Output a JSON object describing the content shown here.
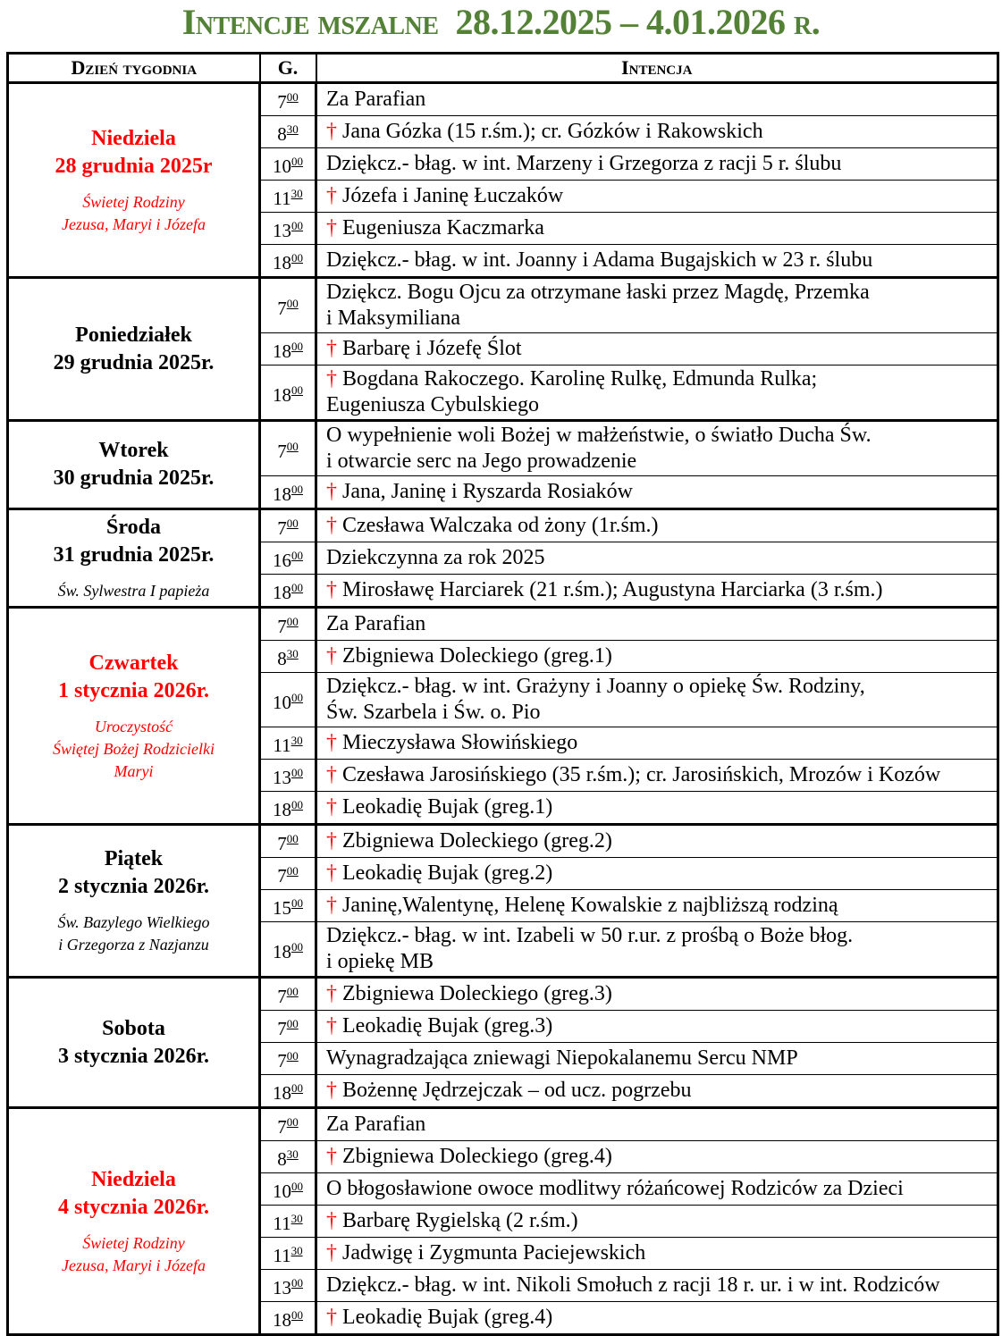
{
  "title": {
    "prefix": "Intencje mszalne",
    "dates": "28.12.2025 – 4.01.2026",
    "suffix": "r."
  },
  "headers": {
    "day": "Dzień tygodnia",
    "hour": "G.",
    "intention": "Intencja"
  },
  "colors": {
    "title": "#538135",
    "feast": "#ff0000",
    "cross": "#ff0000"
  },
  "cross_symbol": "†",
  "days": [
    {
      "name": "Niedziela",
      "date": "28 grudnia 2025r",
      "feast": "Świetej Rodziny\nJezusa, Maryi i Józefa",
      "red": true,
      "rows": [
        {
          "h": "7",
          "m": "00",
          "cross": false,
          "text": "Za Parafian"
        },
        {
          "h": "8",
          "m": "30",
          "cross": true,
          "text": "Jana Gózka (15 r.śm.); cr. Gózków i Rakowskich"
        },
        {
          "h": "10",
          "m": "00",
          "cross": false,
          "text": "Dziękcz.- błag. w int. Marzeny i Grzegorza z racji 5 r. ślubu"
        },
        {
          "h": "11",
          "m": "30",
          "cross": true,
          "text": "Józefa i Janinę Łuczaków"
        },
        {
          "h": "13",
          "m": "00",
          "cross": true,
          "text": "Eugeniusza Kaczmarka"
        },
        {
          "h": "18",
          "m": "00",
          "cross": false,
          "text": "Dziękcz.- błag. w int. Joanny i Adama Bugajskich w 23 r. ślubu"
        }
      ]
    },
    {
      "name": "Poniedziałek",
      "date": "29 grudnia 2025r.",
      "feast": "",
      "red": false,
      "rows": [
        {
          "h": "7",
          "m": "00",
          "cross": false,
          "text": "Dziękcz. Bogu Ojcu za otrzymane łaski przez Magdę, Przemka\ni Maksymiliana"
        },
        {
          "h": "18",
          "m": "00",
          "cross": true,
          "text": "Barbarę i Józefę Ślot"
        },
        {
          "h": "18",
          "m": "00",
          "cross": true,
          "text": "Bogdana Rakoczego. Karolinę Rulkę, Edmunda Rulka;\nEugeniusza Cybulskiego"
        }
      ]
    },
    {
      "name": "Wtorek",
      "date": "30 grudnia 2025r.",
      "feast": "",
      "red": false,
      "rows": [
        {
          "h": "7",
          "m": "00",
          "cross": false,
          "text": "O wypełnienie woli Bożej w małżeństwie, o światło Ducha Św.\ni otwarcie serc na Jego prowadzenie"
        },
        {
          "h": "18",
          "m": "00",
          "cross": true,
          "text": "Jana, Janinę i Ryszarda Rosiaków"
        }
      ]
    },
    {
      "name": "Środa",
      "date": "31 grudnia 2025r.",
      "feast": "Św. Sylwestra I papieża",
      "red": false,
      "rows": [
        {
          "h": "7",
          "m": "00",
          "cross": true,
          "text": "Czesława Walczaka od żony (1r.śm.)"
        },
        {
          "h": "16",
          "m": "00",
          "cross": false,
          "text": "Dziekczynna za rok 2025"
        },
        {
          "h": "18",
          "m": "00",
          "cross": true,
          "text": "Mirosławę Harciarek (21 r.śm.); Augustyna Harciarka (3 r.śm.)"
        }
      ]
    },
    {
      "name": "Czwartek",
      "date": "1 stycznia 2026r.",
      "feast": "Uroczystość\nŚwiętej Bożej Rodzicielki\nMaryi",
      "red": true,
      "rows": [
        {
          "h": "7",
          "m": "00",
          "cross": false,
          "text": "Za Parafian"
        },
        {
          "h": "8",
          "m": "30",
          "cross": true,
          "text": "Zbigniewa Doleckiego (greg.1)"
        },
        {
          "h": "10",
          "m": "00",
          "cross": false,
          "text": "Dziękcz.- błag. w int. Grażyny i Joanny o opiekę Św. Rodziny,\nŚw. Szarbela i Św. o. Pio"
        },
        {
          "h": "11",
          "m": "30",
          "cross": true,
          "text": "Mieczysława Słowińskiego"
        },
        {
          "h": "13",
          "m": "00",
          "cross": true,
          "text": "Czesława Jarosińskiego (35 r.śm.); cr. Jarosińskich, Mrozów i Kozów"
        },
        {
          "h": "18",
          "m": "00",
          "cross": true,
          "text": "Leokadię Bujak (greg.1)"
        }
      ]
    },
    {
      "name": "Piątek",
      "date": "2 stycznia 2026r.",
      "feast": "Św. Bazylego Wielkiego\ni Grzegorza z Nazjanzu",
      "red": false,
      "rows": [
        {
          "h": "7",
          "m": "00",
          "cross": true,
          "text": "Zbigniewa Doleckiego (greg.2)"
        },
        {
          "h": "7",
          "m": "00",
          "cross": true,
          "text": "Leokadię Bujak (greg.2)"
        },
        {
          "h": "15",
          "m": "00",
          "cross": true,
          "text": "Janinę,Walentynę, Helenę Kowalskie z najbliższą rodziną"
        },
        {
          "h": "18",
          "m": "00",
          "cross": false,
          "text": "Dziękcz.- błag. w int. Izabeli w 50 r.ur. z prośbą o Boże błog.\ni opiekę MB"
        }
      ]
    },
    {
      "name": "Sobota",
      "date": "3 stycznia 2026r.",
      "feast": "",
      "red": false,
      "rows": [
        {
          "h": "7",
          "m": "00",
          "cross": true,
          "text": "Zbigniewa Doleckiego (greg.3)"
        },
        {
          "h": "7",
          "m": "00",
          "cross": true,
          "text": "Leokadię Bujak (greg.3)"
        },
        {
          "h": "7",
          "m": "00",
          "cross": false,
          "text": "Wynagradzająca zniewagi Niepokalanemu Sercu NMP"
        },
        {
          "h": "18",
          "m": "00",
          "cross": true,
          "text": "Bożennę Jędrzejczak – od ucz. pogrzebu"
        }
      ]
    },
    {
      "name": "Niedziela",
      "date": "4 stycznia 2026r.",
      "feast": "Świetej Rodziny\nJezusa, Maryi i Józefa",
      "red": true,
      "rows": [
        {
          "h": "7",
          "m": "00",
          "cross": false,
          "text": "Za Parafian"
        },
        {
          "h": "8",
          "m": "30",
          "cross": true,
          "text": "Zbigniewa Doleckiego (greg.4)"
        },
        {
          "h": "10",
          "m": "00",
          "cross": false,
          "text": "O błogosławione owoce modlitwy różańcowej  Rodziców za Dzieci"
        },
        {
          "h": "11",
          "m": "30",
          "cross": true,
          "text": "Barbarę Rygielską (2 r.śm.)"
        },
        {
          "h": "11",
          "m": "30",
          "cross": true,
          "text": "Jadwigę i Zygmunta Paciejewskich"
        },
        {
          "h": "13",
          "m": "00",
          "cross": false,
          "text": "Dziękcz.- błag. w int. Nikoli Smołuch z racji 18 r. ur. i w int. Rodziców"
        },
        {
          "h": "18",
          "m": "00",
          "cross": true,
          "text": "Leokadię Bujak (greg.4)"
        }
      ]
    }
  ]
}
